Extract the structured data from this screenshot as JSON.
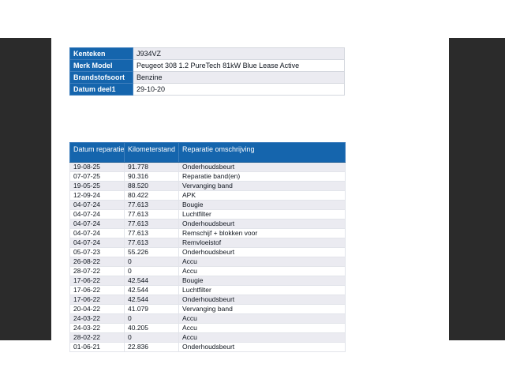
{
  "colors": {
    "header_blue": "#1565ad",
    "side_bar": "#2b2b2b",
    "row_stripe": "#ebebf1",
    "page_background": "#ffffff",
    "header_text": "#ffffff"
  },
  "vehicle_info": {
    "rows": [
      {
        "label": "Kenteken",
        "value": "J934VZ"
      },
      {
        "label": "Merk Model",
        "value": "Peugeot 308 1.2 PureTech 81kW Blue Lease Active"
      },
      {
        "label": "Brandstofsoort",
        "value": "Benzine"
      },
      {
        "label": "Datum deel1",
        "value": "29-10-20"
      }
    ]
  },
  "repairs": {
    "columns": [
      "Datum reparatie",
      "Kilometerstand",
      "Reparatie omschrijving"
    ],
    "rows": [
      [
        "19-08-25",
        "91.778",
        "Onderhoudsbeurt"
      ],
      [
        "07-07-25",
        "90.316",
        "Reparatie band(en)"
      ],
      [
        "19-05-25",
        "88.520",
        "Vervanging band"
      ],
      [
        "12-09-24",
        "80.422",
        "APK"
      ],
      [
        "04-07-24",
        "77.613",
        "Bougie"
      ],
      [
        "04-07-24",
        "77.613",
        "Luchtfilter"
      ],
      [
        "04-07-24",
        "77.613",
        "Onderhoudsbeurt"
      ],
      [
        "04-07-24",
        "77.613",
        "Remschijf + blokken voor"
      ],
      [
        "04-07-24",
        "77.613",
        "Remvloeistof"
      ],
      [
        "05-07-23",
        "55.226",
        "Onderhoudsbeurt"
      ],
      [
        "26-08-22",
        "0",
        "Accu"
      ],
      [
        "28-07-22",
        "0",
        "Accu"
      ],
      [
        "17-06-22",
        "42.544",
        "Bougie"
      ],
      [
        "17-06-22",
        "42.544",
        "Luchtfilter"
      ],
      [
        "17-06-22",
        "42.544",
        "Onderhoudsbeurt"
      ],
      [
        "20-04-22",
        "41.079",
        "Vervanging band"
      ],
      [
        "24-03-22",
        "0",
        "Accu"
      ],
      [
        "24-03-22",
        "40.205",
        "Accu"
      ],
      [
        "28-02-22",
        "0",
        "Accu"
      ],
      [
        "01-06-21",
        "22.836",
        "Onderhoudsbeurt"
      ]
    ]
  }
}
